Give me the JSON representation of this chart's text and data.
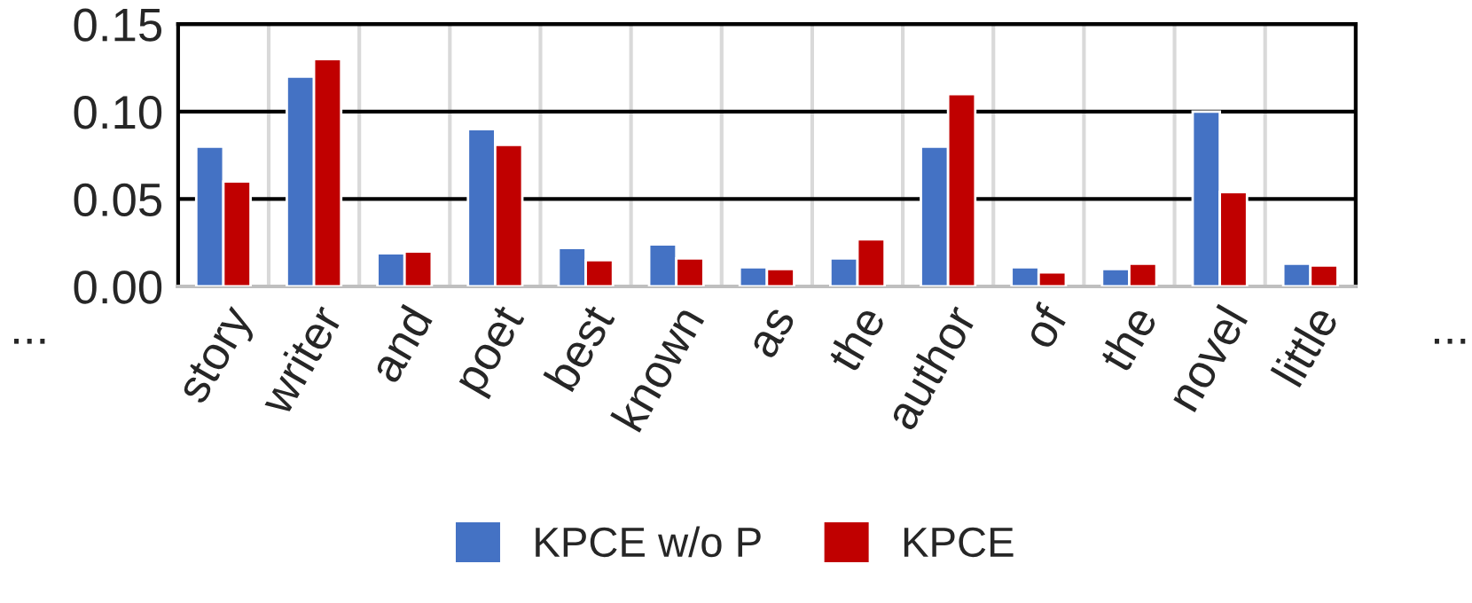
{
  "chart_data": {
    "type": "bar",
    "categories": [
      "story",
      "writer",
      "and",
      "poet",
      "best",
      "known",
      "as",
      "the",
      "author",
      "of",
      "the",
      "novel",
      "little"
    ],
    "series": [
      {
        "name": "KPCE w/o P",
        "color": "#4472c4",
        "values": [
          0.08,
          0.12,
          0.019,
          0.09,
          0.022,
          0.024,
          0.011,
          0.016,
          0.08,
          0.011,
          0.01,
          0.1,
          0.013
        ]
      },
      {
        "name": "KPCE",
        "color": "#c00000",
        "values": [
          0.06,
          0.13,
          0.02,
          0.081,
          0.015,
          0.016,
          0.01,
          0.027,
          0.11,
          0.008,
          0.013,
          0.054,
          0.012
        ]
      }
    ],
    "ylim": [
      0,
      0.15
    ],
    "yticks": [
      {
        "value": 0,
        "label": "0.00"
      },
      {
        "value": 0.05,
        "label": "0.05"
      },
      {
        "value": 0.1,
        "label": "0.10"
      },
      {
        "value": 0.15,
        "label": "0.15"
      }
    ],
    "grid": true,
    "legend": "bottom",
    "annotations": [
      "...",
      "..."
    ]
  }
}
